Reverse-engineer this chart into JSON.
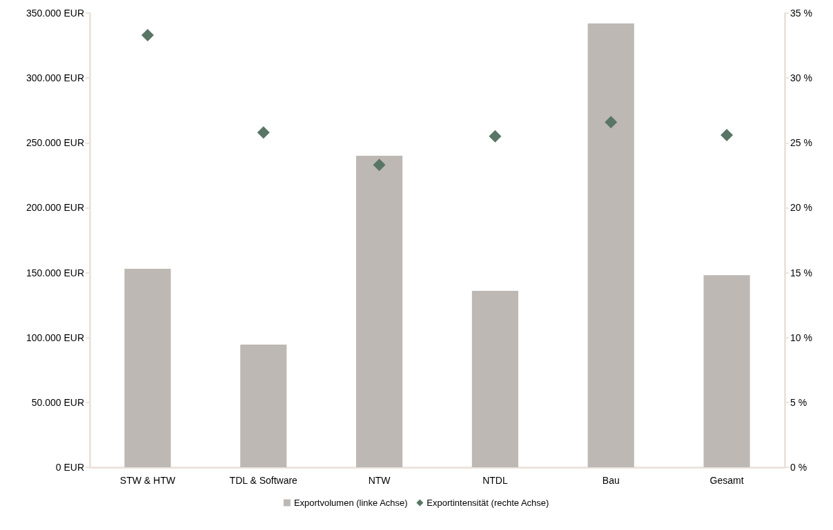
{
  "chart_data": {
    "type": "bar",
    "categories": [
      "STW & HTW",
      "TDL & Software",
      "NTW",
      "NTDL",
      "Bau",
      "Gesamt"
    ],
    "series": [
      {
        "name": "Exportvolumen (linke Achse)",
        "color": "#bdb8b3",
        "values": [
          153000,
          94500,
          240000,
          136000,
          342000,
          148000
        ]
      },
      {
        "name": "Exportintensität (rechte Achse)",
        "type": "scatter",
        "axis": "y2",
        "marker": "diamond",
        "color": "#587565",
        "values": [
          33.3,
          25.8,
          23.3,
          25.5,
          26.6,
          25.6
        ]
      }
    ],
    "ylim": [
      0,
      350000
    ],
    "yticks": [
      {
        "value": 0,
        "label": "0 EUR"
      },
      {
        "value": 50000,
        "label": "50.000 EUR"
      },
      {
        "value": 100000,
        "label": "100.000 EUR"
      },
      {
        "value": 150000,
        "label": "150.000 EUR"
      },
      {
        "value": 200000,
        "label": "200.000 EUR"
      },
      {
        "value": 250000,
        "label": "250.000 EUR"
      },
      {
        "value": 300000,
        "label": "300.000 EUR"
      },
      {
        "value": 350000,
        "label": "350.000 EUR"
      }
    ],
    "y2lim": [
      0,
      35
    ],
    "y2ticks": [
      {
        "value": 0,
        "label": "0 %"
      },
      {
        "value": 5,
        "label": "5 %"
      },
      {
        "value": 10,
        "label": "10 %"
      },
      {
        "value": 15,
        "label": "15 %"
      },
      {
        "value": 20,
        "label": "20 %"
      },
      {
        "value": 25,
        "label": "25 %"
      },
      {
        "value": 30,
        "label": "30 %"
      },
      {
        "value": 35,
        "label": "35 %"
      }
    ],
    "grid": false,
    "legend": "bottom"
  }
}
